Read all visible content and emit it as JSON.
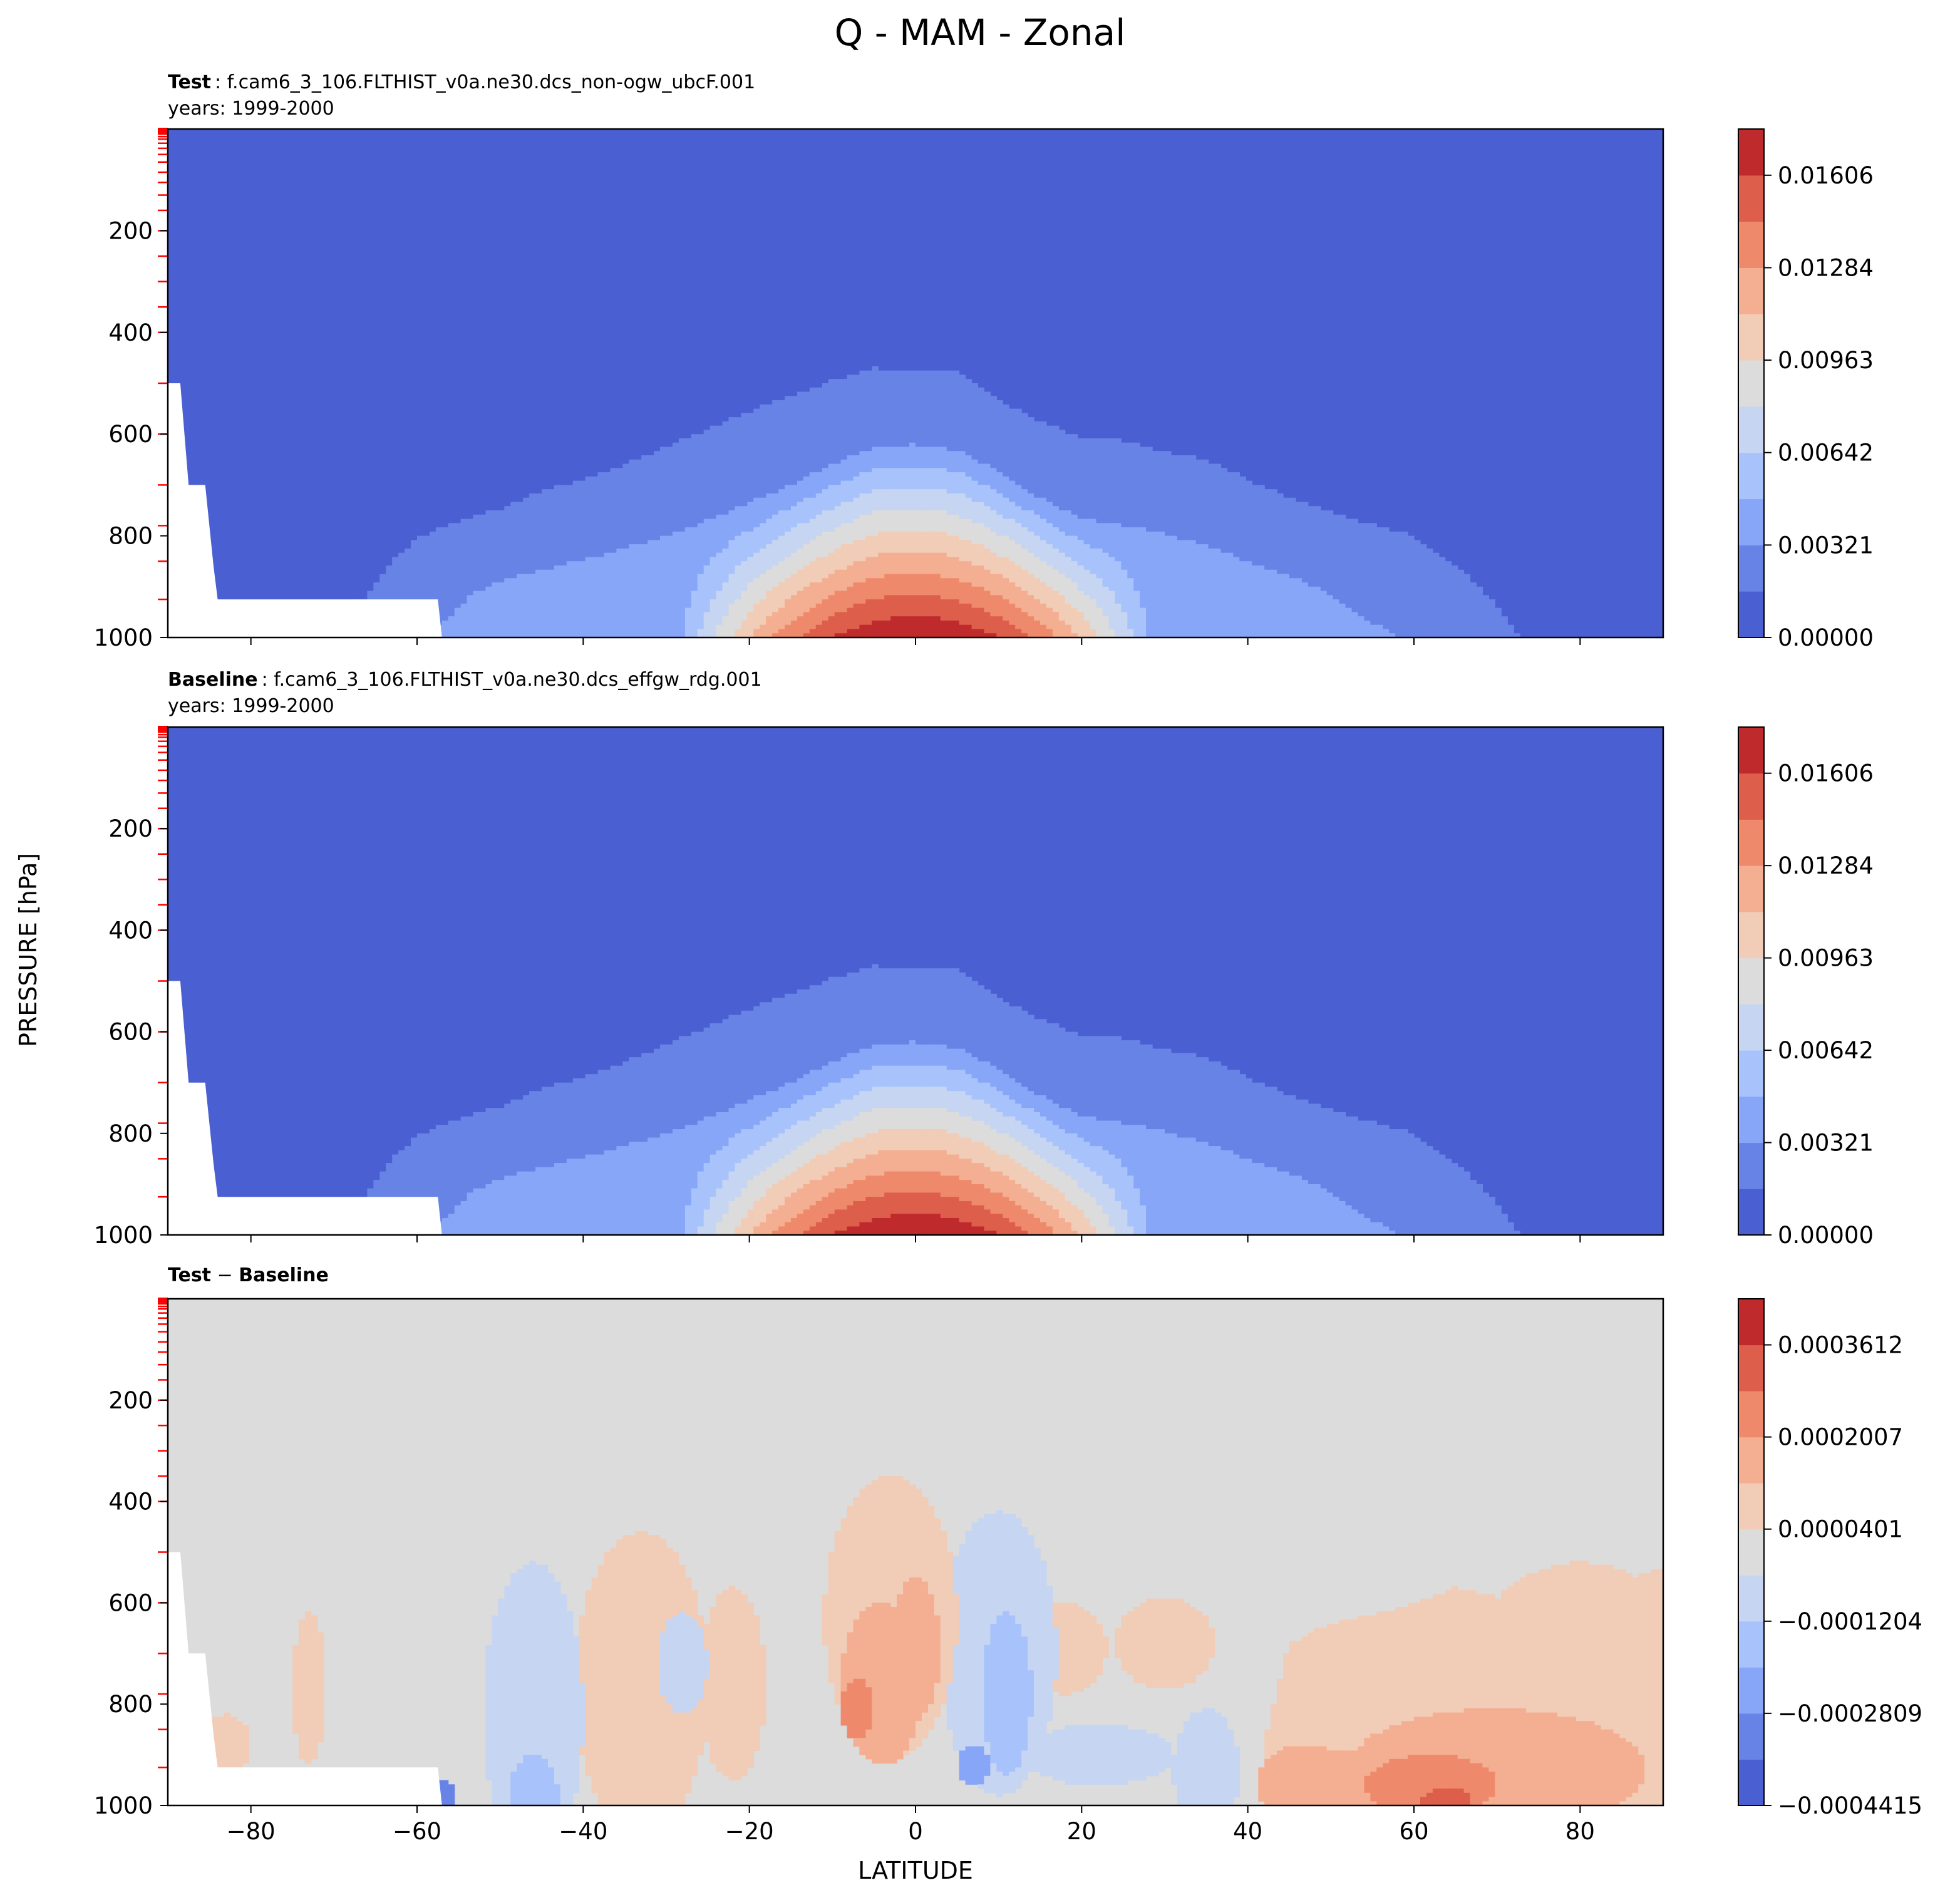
{
  "figure": {
    "title": "Q - MAM - Zonal",
    "ylabel": "PRESSURE [hPa]",
    "xlabel": "LATITUDE"
  },
  "panels": [
    {
      "label_bold": "Test",
      "label_text": ": f.cam6_3_106.FLTHIST_v0a.ne30.dcs_non-ogw_ubcF.001",
      "years": "years: 1999-2000",
      "colorbar_ticks": [
        "0.00000",
        "0.00321",
        "0.00642",
        "0.00963",
        "0.01284",
        "0.01606"
      ]
    },
    {
      "label_bold": "Baseline",
      "label_text": ": f.cam6_3_106.FLTHIST_v0a.ne30.dcs_effgw_rdg.001",
      "years": "years: 1999-2000",
      "colorbar_ticks": [
        "0.00000",
        "0.00321",
        "0.00642",
        "0.00963",
        "0.01284",
        "0.01606"
      ]
    },
    {
      "label_bold": "Test",
      "label_sep": " − ",
      "label_bold2": "Baseline",
      "years": "",
      "colorbar_ticks": [
        "−0.0004415",
        "−0.0002809",
        "−0.0001204",
        "0.0000401",
        "0.0002007",
        "0.0003612"
      ]
    }
  ],
  "chart_data": [
    {
      "type": "heatmap",
      "subtype": "filled-contour",
      "title": "Test : f.cam6_3_106.FLTHIST_v0a.ne30.dcs_non-ogw_ubcF.001",
      "subtitle": "years: 1999-2000",
      "x_range": [
        -90,
        90
      ],
      "x_ticks": [
        -80,
        -60,
        -40,
        -20,
        0,
        20,
        40,
        60,
        80
      ],
      "y_range": [
        0,
        1000
      ],
      "y_inverted": true,
      "y_ticks": [
        200,
        400,
        600,
        800,
        1000
      ],
      "colormap": "coolwarm",
      "levels": [
        0.0,
        0.0016,
        0.00321,
        0.00482,
        0.00642,
        0.00803,
        0.00963,
        0.01124,
        0.01284,
        0.01445,
        0.01606,
        0.01766
      ],
      "colors": [
        "#4a5fd1",
        "#6883e6",
        "#88a6f7",
        "#a8c3fb",
        "#c6d5f1",
        "#dcdcdc",
        "#f1ccb7",
        "#f4ae91",
        "#ee8a6b",
        "#dc5e4b",
        "#bf2b2d"
      ],
      "contour_tops_hPa": [
        {
          "lat": [
            -88,
            -84,
            -80,
            -75,
            -70,
            -66,
            -63,
            -60,
            -55,
            -50,
            -45,
            -40,
            -35,
            -30,
            -25,
            -20,
            -15,
            -10,
            -5,
            0,
            5,
            10,
            15,
            20,
            25,
            30,
            35,
            40,
            45,
            50,
            55,
            60,
            65,
            70,
            75,
            80,
            85,
            88
          ],
          "top": [
            1000,
            1000,
            1000,
            1000,
            1000,
            930,
            860,
            800,
            765,
            745,
            715,
            690,
            660,
            620,
            590,
            555,
            520,
            490,
            465,
            475,
            480,
            535,
            580,
            610,
            615,
            640,
            650,
            690,
            725,
            755,
            780,
            800,
            870,
            960,
            1000,
            1000,
            1000,
            1000
          ]
        },
        {
          "lat": [
            -60,
            -55,
            -50,
            -45,
            -40,
            -35,
            -30,
            -25,
            -20,
            -15,
            -10,
            -5,
            0,
            5,
            10,
            15,
            20,
            25,
            30,
            35,
            40,
            45,
            50,
            55,
            60,
            65,
            70,
            72
          ],
          "top": [
            1000,
            960,
            900,
            875,
            850,
            820,
            790,
            765,
            730,
            690,
            650,
            615,
            620,
            630,
            670,
            725,
            770,
            780,
            790,
            820,
            850,
            875,
            915,
            960,
            1000,
            1000,
            1000,
            1000
          ]
        }
      ],
      "masked_region": "topography below surface at -90 to -57 latitude",
      "colorbar_ticks": [
        0.0,
        0.00321,
        0.00642,
        0.00963,
        0.01284,
        0.01606
      ]
    },
    {
      "type": "heatmap",
      "subtype": "filled-contour",
      "title": "Baseline : f.cam6_3_106.FLTHIST_v0a.ne30.dcs_effgw_rdg.001",
      "subtitle": "years: 1999-2000",
      "x_range": [
        -90,
        90
      ],
      "x_ticks": [
        -80,
        -60,
        -40,
        -20,
        0,
        20,
        40,
        60,
        80
      ],
      "y_range": [
        0,
        1000
      ],
      "y_inverted": true,
      "y_ticks": [
        200,
        400,
        600,
        800,
        1000
      ],
      "colormap": "coolwarm",
      "levels": [
        0.0,
        0.0016,
        0.00321,
        0.00482,
        0.00642,
        0.00803,
        0.00963,
        0.01124,
        0.01284,
        0.01445,
        0.01606,
        0.01766
      ],
      "colors": [
        "#4a5fd1",
        "#6883e6",
        "#88a6f7",
        "#a8c3fb",
        "#c6d5f1",
        "#dcdcdc",
        "#f1ccb7",
        "#f4ae91",
        "#ee8a6b",
        "#dc5e4b",
        "#bf2b2d"
      ],
      "masked_region": "topography below surface at -90 to -57 latitude",
      "colorbar_ticks": [
        0.0,
        0.00321,
        0.00642,
        0.00963,
        0.01284,
        0.01606
      ]
    },
    {
      "type": "heatmap",
      "subtype": "filled-contour",
      "title": "Test − Baseline",
      "x_range": [
        -90,
        90
      ],
      "x_ticks": [
        -80,
        -60,
        -40,
        -20,
        0,
        20,
        40,
        60,
        80
      ],
      "y_range": [
        0,
        1000
      ],
      "y_inverted": true,
      "y_ticks": [
        200,
        400,
        600,
        800,
        1000
      ],
      "colormap": "coolwarm",
      "levels": [
        -0.0004415,
        -0.0003612,
        -0.0002809,
        -0.0002007,
        -0.0001204,
        -4.01e-05,
        4.01e-05,
        0.0001204,
        0.0002007,
        0.0002809,
        0.0003612,
        0.0004415
      ],
      "colors": [
        "#4a5fd1",
        "#6883e6",
        "#88a6f7",
        "#a8c3fb",
        "#c6d5f1",
        "#dcdcdc",
        "#f1ccb7",
        "#f4ae91",
        "#ee8a6b",
        "#dc5e4b",
        "#bf2b2d"
      ],
      "colorbar_ticks": [
        -0.0004415,
        -0.0002809,
        -0.0001204,
        4.01e-05,
        0.0002007,
        0.0003612
      ]
    }
  ],
  "colors": {
    "level_colors": [
      "#4a5fd1",
      "#6883e6",
      "#88a6f7",
      "#a8c3fb",
      "#c6d5f1",
      "#dcdcdc",
      "#f1ccb7",
      "#f4ae91",
      "#ee8a6b",
      "#dc5e4b",
      "#bf2b2d"
    ],
    "model_level_ticks": "#ff0000"
  },
  "axes": {
    "x_ticks": [
      -80,
      -60,
      -40,
      -20,
      0,
      20,
      40,
      60,
      80
    ],
    "y_ticks": [
      200,
      400,
      600,
      800,
      1000
    ]
  }
}
